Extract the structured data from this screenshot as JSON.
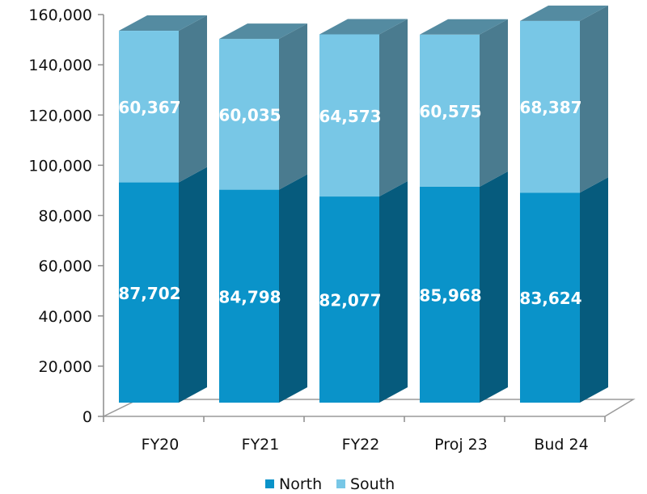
{
  "chart_data": {
    "type": "bar",
    "stacked": true,
    "three_d": true,
    "categories": [
      "FY20",
      "FY21",
      "FY22",
      "Proj 23",
      "Bud 24"
    ],
    "series": [
      {
        "name": "North",
        "values": [
          87702,
          84798,
          82077,
          85968,
          83624
        ],
        "color": "#0a93c9"
      },
      {
        "name": "South",
        "values": [
          60367,
          60035,
          64573,
          60575,
          68387
        ],
        "color": "#78c7e6"
      }
    ],
    "ylim": [
      0,
      160000
    ],
    "yticks": [
      0,
      20000,
      40000,
      60000,
      80000,
      100000,
      120000,
      140000,
      160000
    ],
    "ytick_labels": [
      "0",
      "20,000",
      "40,000",
      "60,000",
      "80,000",
      "100,000",
      "120,000",
      "140,000",
      "160,000"
    ],
    "data_labels": [
      [
        "87,702",
        "84,798",
        "82,077",
        "85,968",
        "83,624"
      ],
      [
        "60,367",
        "60,035",
        "64,573",
        "60,575",
        "68,387"
      ]
    ],
    "legend_position": "bottom",
    "grid": false
  }
}
